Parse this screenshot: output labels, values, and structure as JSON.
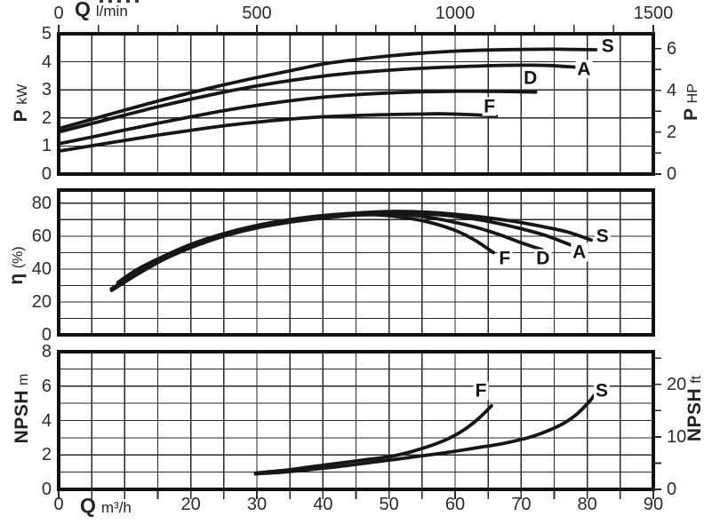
{
  "colors": {
    "ink": "#161616",
    "grid": "#2a2a2a",
    "text": "#2b2b2b"
  },
  "top_axis": {
    "title": "Q",
    "unit": "l/min",
    "tick_values": [
      0,
      500,
      1000,
      1500
    ],
    "tick_labels": [
      "0",
      "500",
      "1000",
      "1500"
    ],
    "minor_step_lmin": 100
  },
  "bottom_axis": {
    "title": "Q",
    "unit": "m³/h",
    "tick_values": [
      0,
      20,
      30,
      40,
      50,
      60,
      70,
      80,
      90
    ],
    "tick_labels": [
      "0",
      "20",
      "30",
      "40",
      "50",
      "60",
      "70",
      "80",
      "90"
    ],
    "minor_step": 5,
    "xlim": [
      0,
      90
    ]
  },
  "chart_data": [
    {
      "panel": "power",
      "type": "line",
      "xlim": [
        0,
        90
      ],
      "ylim": [
        0,
        5
      ],
      "grid": "on",
      "y_axis_left": {
        "title": "P",
        "unit": "kW",
        "ticks": [
          0,
          1,
          2,
          3,
          4,
          5
        ]
      },
      "y_axis_right": {
        "title": "P",
        "unit": "HP",
        "ticks": [
          0,
          2,
          4,
          6
        ],
        "minor_ticks": [
          1,
          3,
          5
        ]
      },
      "series": [
        {
          "name": "S",
          "label_at": [
            83.1,
            4.56
          ],
          "points": [
            [
              0,
              1.62
            ],
            [
              5,
              1.95
            ],
            [
              10,
              2.28
            ],
            [
              15,
              2.6
            ],
            [
              20,
              2.9
            ],
            [
              25,
              3.18
            ],
            [
              30,
              3.44
            ],
            [
              35,
              3.68
            ],
            [
              40,
              3.92
            ],
            [
              45,
              4.08
            ],
            [
              50,
              4.21
            ],
            [
              55,
              4.31
            ],
            [
              60,
              4.38
            ],
            [
              65,
              4.42
            ],
            [
              70,
              4.44
            ],
            [
              75,
              4.45
            ],
            [
              81.3,
              4.43
            ]
          ]
        },
        {
          "name": "A",
          "label_at": [
            79.5,
            3.73
          ],
          "points": [
            [
              0,
              1.5
            ],
            [
              5,
              1.8
            ],
            [
              10,
              2.1
            ],
            [
              15,
              2.4
            ],
            [
              20,
              2.67
            ],
            [
              25,
              2.92
            ],
            [
              30,
              3.14
            ],
            [
              35,
              3.33
            ],
            [
              40,
              3.49
            ],
            [
              45,
              3.61
            ],
            [
              50,
              3.7
            ],
            [
              55,
              3.77
            ],
            [
              60,
              3.82
            ],
            [
              65,
              3.86
            ],
            [
              70,
              3.88
            ],
            [
              74,
              3.87
            ],
            [
              78.2,
              3.81
            ]
          ]
        },
        {
          "name": "D",
          "label_at": [
            71.4,
            3.42
          ],
          "points": [
            [
              0,
              1.08
            ],
            [
              5,
              1.32
            ],
            [
              10,
              1.57
            ],
            [
              15,
              1.81
            ],
            [
              20,
              2.04
            ],
            [
              25,
              2.26
            ],
            [
              30,
              2.45
            ],
            [
              35,
              2.61
            ],
            [
              40,
              2.74
            ],
            [
              45,
              2.83
            ],
            [
              50,
              2.89
            ],
            [
              55,
              2.93
            ],
            [
              60,
              2.95
            ],
            [
              65,
              2.95
            ],
            [
              72.2,
              2.92
            ]
          ]
        },
        {
          "name": "F",
          "label_at": [
            65.2,
            2.41
          ],
          "points": [
            [
              0,
              0.82
            ],
            [
              5,
              1.01
            ],
            [
              10,
              1.2
            ],
            [
              15,
              1.39
            ],
            [
              20,
              1.56
            ],
            [
              25,
              1.72
            ],
            [
              30,
              1.85
            ],
            [
              35,
              1.96
            ],
            [
              40,
              2.04
            ],
            [
              45,
              2.09
            ],
            [
              50,
              2.12
            ],
            [
              55,
              2.14
            ],
            [
              58,
              2.15
            ],
            [
              62,
              2.12
            ],
            [
              66.2,
              2.07
            ]
          ]
        }
      ]
    },
    {
      "panel": "efficiency",
      "type": "line",
      "xlim": [
        0,
        90
      ],
      "ylim": [
        0,
        88
      ],
      "grid": "on",
      "y_axis_left": {
        "title": "η",
        "unit": "(%)",
        "ticks": [
          0,
          20,
          40,
          60,
          80
        ],
        "minor_ticks": [
          10,
          30,
          50,
          70
        ]
      },
      "series": [
        {
          "name": "S",
          "label_at": [
            82.3,
            59.9
          ],
          "points": [
            [
              9,
              32
            ],
            [
              12,
              40
            ],
            [
              16,
              48
            ],
            [
              20,
              55
            ],
            [
              25,
              61.5
            ],
            [
              30,
              66.5
            ],
            [
              35,
              70
            ],
            [
              40,
              72.5
            ],
            [
              45,
              74
            ],
            [
              50,
              75
            ],
            [
              56,
              74.5
            ],
            [
              62,
              72.5
            ],
            [
              68,
              69.5
            ],
            [
              73,
              66
            ],
            [
              77,
              62.5
            ],
            [
              80.6,
              57.6
            ]
          ]
        },
        {
          "name": "A",
          "label_at": [
            78.8,
            50.2
          ],
          "points": [
            [
              9,
              31
            ],
            [
              12,
              39
            ],
            [
              16,
              47.5
            ],
            [
              20,
              54.5
            ],
            [
              25,
              61
            ],
            [
              30,
              66
            ],
            [
              35,
              69.5
            ],
            [
              40,
              72
            ],
            [
              45,
              73.7
            ],
            [
              50,
              74.5
            ],
            [
              55,
              73.8
            ],
            [
              60,
              72
            ],
            [
              65,
              69
            ],
            [
              70,
              64.5
            ],
            [
              74,
              60
            ],
            [
              78.3,
              53.3
            ]
          ]
        },
        {
          "name": "D",
          "label_at": [
            73.3,
            46.4
          ],
          "points": [
            [
              8,
              28
            ],
            [
              12,
              38
            ],
            [
              16,
              46.5
            ],
            [
              20,
              53.5
            ],
            [
              25,
              60.5
            ],
            [
              30,
              65.5
            ],
            [
              35,
              69
            ],
            [
              40,
              71.5
            ],
            [
              45,
              73.2
            ],
            [
              49,
              74
            ],
            [
              54,
              72.5
            ],
            [
              58,
              70
            ],
            [
              63,
              65.5
            ],
            [
              67,
              60.5
            ],
            [
              70,
              56
            ],
            [
              73.2,
              51.7
            ]
          ]
        },
        {
          "name": "F",
          "label_at": [
            67.5,
            46.4
          ],
          "points": [
            [
              8,
              27
            ],
            [
              12,
              37
            ],
            [
              16,
              46
            ],
            [
              20,
              53
            ],
            [
              25,
              60
            ],
            [
              30,
              65
            ],
            [
              35,
              68.5
            ],
            [
              40,
              71
            ],
            [
              44,
              72.5
            ],
            [
              48,
              73
            ],
            [
              52,
              71.5
            ],
            [
              56,
              68.5
            ],
            [
              60,
              63.5
            ],
            [
              63,
              57.5
            ],
            [
              65.8,
              50
            ]
          ]
        }
      ]
    },
    {
      "panel": "npsh",
      "type": "line",
      "xlim": [
        0,
        90
      ],
      "ylim": [
        0,
        8
      ],
      "grid": "on",
      "y_axis_left": {
        "title": "NPSH",
        "unit": "m",
        "ticks": [
          0,
          2,
          4,
          6,
          8
        ],
        "minor_ticks": [
          1,
          3,
          5,
          7
        ]
      },
      "y_axis_right": {
        "title": "NPSH",
        "unit": "ft",
        "ticks": [
          0,
          10,
          20
        ],
        "minor_ticks": [
          5,
          15,
          25
        ]
      },
      "series": [
        {
          "name": "F",
          "label_at": [
            63.9,
            5.73
          ],
          "points": [
            [
              29.8,
              0.95
            ],
            [
              34,
              1.1
            ],
            [
              38,
              1.3
            ],
            [
              42,
              1.5
            ],
            [
              46,
              1.7
            ],
            [
              50,
              1.9
            ],
            [
              53,
              2.15
            ],
            [
              56,
              2.5
            ],
            [
              59,
              2.95
            ],
            [
              61.5,
              3.5
            ],
            [
              63.5,
              4.1
            ],
            [
              65.5,
              4.85
            ]
          ]
        },
        {
          "name": "S",
          "label_at": [
            82.2,
            5.73
          ],
          "points": [
            [
              29.8,
              0.9
            ],
            [
              34,
              1.0
            ],
            [
              38,
              1.15
            ],
            [
              43,
              1.35
            ],
            [
              48,
              1.6
            ],
            [
              53,
              1.85
            ],
            [
              58,
              2.1
            ],
            [
              63,
              2.4
            ],
            [
              67,
              2.65
            ],
            [
              71,
              3.0
            ],
            [
              74,
              3.4
            ],
            [
              76.5,
              3.85
            ],
            [
              78.5,
              4.4
            ],
            [
              80.3,
              5.1
            ],
            [
              81.3,
              5.6
            ]
          ]
        }
      ]
    }
  ]
}
